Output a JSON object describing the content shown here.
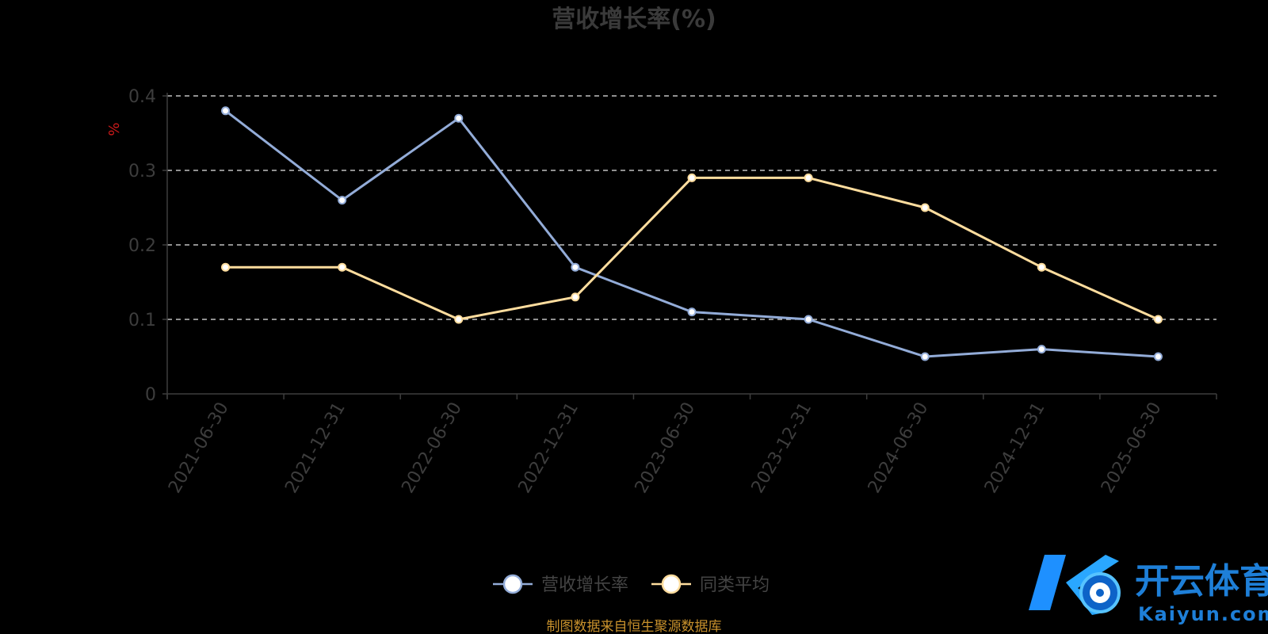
{
  "colors": {
    "background": "#000000",
    "grid": "#e6e6e6",
    "axis": "#3d3d3d",
    "unit": "#cc1a1a",
    "source": "#c8912c",
    "logo_blue": "#1e90ff",
    "logo_text": "#1e7fd8"
  },
  "chart_data": {
    "type": "line",
    "title": "营收增长率(%)",
    "ylabel": "%",
    "xlabel": "",
    "ylim": [
      0,
      0.4
    ],
    "yticks": [
      0,
      0.1,
      0.2,
      0.3,
      0.4
    ],
    "ytick_labels": [
      "0",
      "0.1",
      "0.2",
      "0.3",
      "0.4"
    ],
    "grid": true,
    "legend_position": "bottom-center",
    "categories": [
      "2021-06-30",
      "2021-12-31",
      "2022-06-30",
      "2022-12-31",
      "2023-06-30",
      "2023-12-31",
      "2024-06-30",
      "2024-12-31",
      "2025-06-30"
    ],
    "series": [
      {
        "name": "营收增长率",
        "color": "#93acd8",
        "values": [
          0.38,
          0.26,
          0.37,
          0.17,
          0.11,
          0.1,
          0.05,
          0.06,
          0.05
        ]
      },
      {
        "name": "同类平均",
        "color": "#ffdd9e",
        "values": [
          0.17,
          0.17,
          0.1,
          0.13,
          0.29,
          0.29,
          0.25,
          0.17,
          0.1
        ]
      }
    ]
  },
  "footer": {
    "source": "制图数据来自恒生聚源数据库"
  },
  "logo": {
    "cn": "开云体育",
    "en": "Kaiyun.com",
    "mark": "K"
  }
}
